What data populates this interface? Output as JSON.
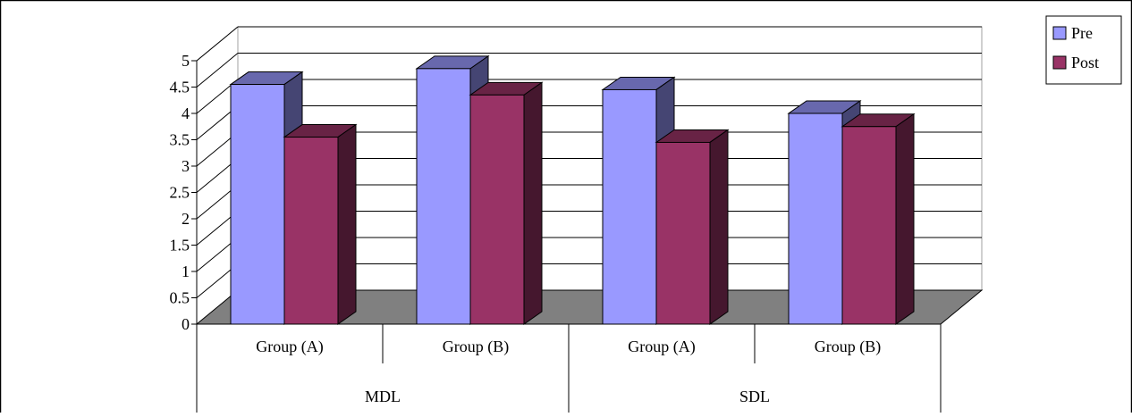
{
  "chart_data": {
    "type": "bar",
    "categories": [
      "Group (A)",
      "Group (B)",
      "Group (A)",
      "Group (B)"
    ],
    "groups": [
      {
        "label": "MDL",
        "categories": [
          "Group (A)",
          "Group (B)"
        ]
      },
      {
        "label": "SDL",
        "categories": [
          "Group (A)",
          "Group (B)"
        ]
      }
    ],
    "series": [
      {
        "name": "Pre",
        "values": [
          4.55,
          4.85,
          4.45,
          4.0
        ],
        "color": "#9999ff"
      },
      {
        "name": "Post",
        "values": [
          3.55,
          4.35,
          3.45,
          3.75
        ],
        "color": "#993366"
      }
    ],
    "y_ticks": [
      "0",
      "0.5",
      "1",
      "1.5",
      "2",
      "2.5",
      "3",
      "3.5",
      "4",
      "4.5",
      "5"
    ],
    "ylim": [
      0,
      5
    ],
    "grid": true,
    "legend_position": "top-right",
    "style": "3d-clustered-column"
  }
}
